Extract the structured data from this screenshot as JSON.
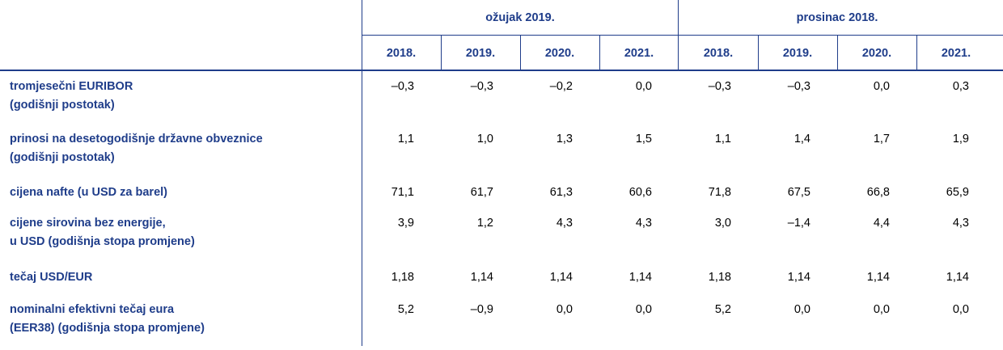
{
  "header": {
    "groups": [
      "ožujak 2019.",
      "prosinac 2018."
    ],
    "columns": [
      "2018.",
      "2019.",
      "2020.",
      "2021.",
      "2018.",
      "2019.",
      "2020.",
      "2021."
    ]
  },
  "table": {
    "rows": [
      {
        "label": [
          "tromjesečni EURIBOR",
          "(godišnji postotak)"
        ],
        "cells": [
          "–0,3",
          "–0,3",
          "–0,2",
          "0,0",
          "–0,3",
          "–0,3",
          "0,0",
          "0,3"
        ]
      },
      {
        "label": [
          "prinosi na desetogodišnje državne obveznice",
          "(godišnji postotak)"
        ],
        "cells": [
          "1,1",
          "1,0",
          "1,3",
          "1,5",
          "1,1",
          "1,4",
          "1,7",
          "1,9"
        ]
      },
      {
        "label": [
          "cijena nafte (u USD za barel)"
        ],
        "cells": [
          "71,1",
          "61,7",
          "61,3",
          "60,6",
          "71,8",
          "67,5",
          "66,8",
          "65,9"
        ]
      },
      {
        "label": [
          "cijene sirovina bez energije,",
          "u USD (godišnja stopa promjene)"
        ],
        "cells": [
          "3,9",
          "1,2",
          "4,3",
          "4,3",
          "3,0",
          "–1,4",
          "4,4",
          "4,3"
        ]
      },
      {
        "label": [
          "tečaj USD/EUR"
        ],
        "cells": [
          "1,18",
          "1,14",
          "1,14",
          "1,14",
          "1,18",
          "1,14",
          "1,14",
          "1,14"
        ]
      },
      {
        "label": [
          "nominalni efektivni tečaj eura",
          "(EER38) (godišnja stopa promjene)"
        ],
        "cells": [
          "5,2",
          "–0,9",
          "0,0",
          "0,0",
          "5,2",
          "0,0",
          "0,0",
          "0,0"
        ]
      }
    ]
  }
}
